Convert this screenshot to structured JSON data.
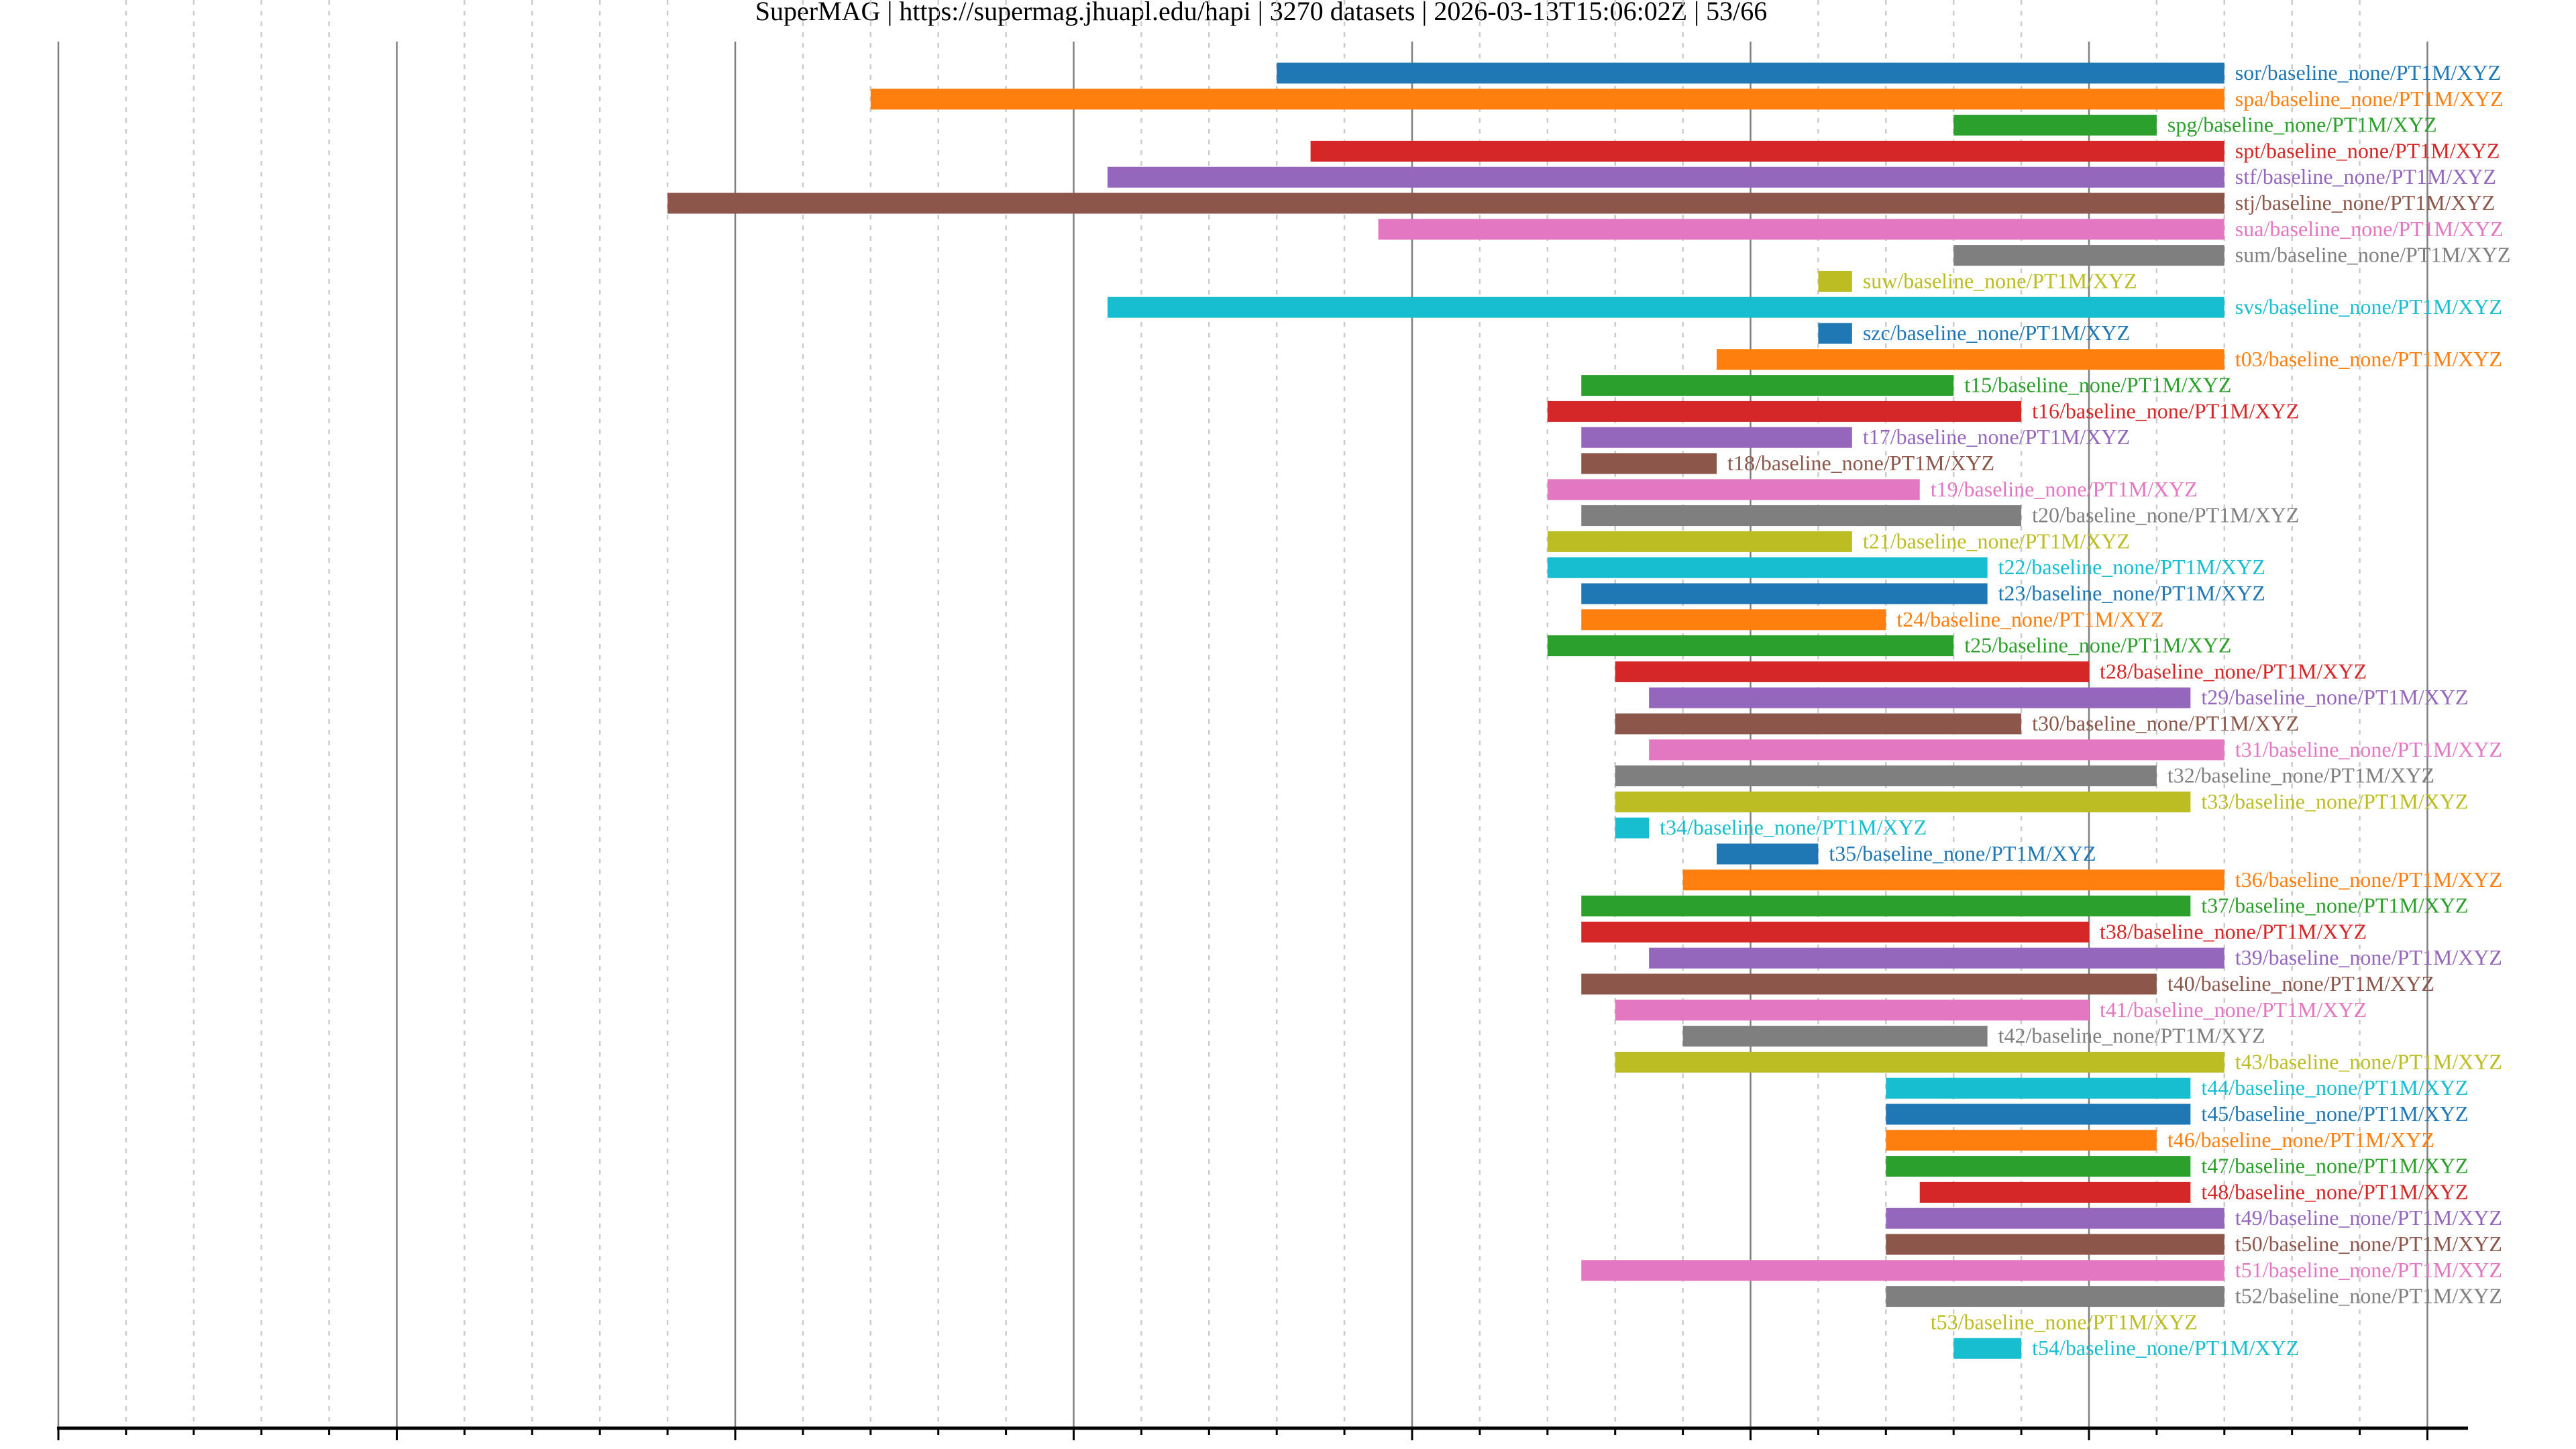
{
  "chart_data": {
    "type": "bar",
    "orientation": "horizontal-timeline",
    "title": "SuperMAG | https://supermag.jhuapl.edu/hapi | 3270 datasets | 2026-03-13T15:06:02Z | 53/66",
    "xlabel": "",
    "ylabel": "",
    "xlim": [
      1960,
      2031.2
    ],
    "x_major_ticks": [
      1960,
      1970,
      1980,
      1990,
      2000,
      2010,
      2020,
      2030
    ],
    "x_minor_step": 2,
    "grid": "major solid, minor dashed (vertical)",
    "colors": [
      "#1f77b4",
      "#ff7f0e",
      "#2ca02c",
      "#d62728",
      "#9467bd",
      "#8c564b",
      "#e377c2",
      "#7f7f7f",
      "#bcbd22",
      "#17becf"
    ],
    "series": [
      {
        "name": "sor/baseline_none/PT1M/XYZ",
        "start": 1996,
        "end": 2024
      },
      {
        "name": "spa/baseline_none/PT1M/XYZ",
        "start": 1984,
        "end": 2024
      },
      {
        "name": "spg/baseline_none/PT1M/XYZ",
        "start": 2016,
        "end": 2022
      },
      {
        "name": "spt/baseline_none/PT1M/XYZ",
        "start": 1997,
        "end": 2024
      },
      {
        "name": "stf/baseline_none/PT1M/XYZ",
        "start": 1991,
        "end": 2024
      },
      {
        "name": "stj/baseline_none/PT1M/XYZ",
        "start": 1978,
        "end": 2024
      },
      {
        "name": "sua/baseline_none/PT1M/XYZ",
        "start": 1999,
        "end": 2024
      },
      {
        "name": "sum/baseline_none/PT1M/XYZ",
        "start": 2016,
        "end": 2024
      },
      {
        "name": "suw/baseline_none/PT1M/XYZ",
        "start": 2012,
        "end": 2013
      },
      {
        "name": "svs/baseline_none/PT1M/XYZ",
        "start": 1991,
        "end": 2024
      },
      {
        "name": "szc/baseline_none/PT1M/XYZ",
        "start": 2012,
        "end": 2013
      },
      {
        "name": "t03/baseline_none/PT1M/XYZ",
        "start": 2009,
        "end": 2024
      },
      {
        "name": "t15/baseline_none/PT1M/XYZ",
        "start": 2005,
        "end": 2016
      },
      {
        "name": "t16/baseline_none/PT1M/XYZ",
        "start": 2004,
        "end": 2018
      },
      {
        "name": "t17/baseline_none/PT1M/XYZ",
        "start": 2005,
        "end": 2013
      },
      {
        "name": "t18/baseline_none/PT1M/XYZ",
        "start": 2005,
        "end": 2009
      },
      {
        "name": "t19/baseline_none/PT1M/XYZ",
        "start": 2004,
        "end": 2015
      },
      {
        "name": "t20/baseline_none/PT1M/XYZ",
        "start": 2005,
        "end": 2018
      },
      {
        "name": "t21/baseline_none/PT1M/XYZ",
        "start": 2004,
        "end": 2013
      },
      {
        "name": "t22/baseline_none/PT1M/XYZ",
        "start": 2004,
        "end": 2017
      },
      {
        "name": "t23/baseline_none/PT1M/XYZ",
        "start": 2005,
        "end": 2017
      },
      {
        "name": "t24/baseline_none/PT1M/XYZ",
        "start": 2005,
        "end": 2014
      },
      {
        "name": "t25/baseline_none/PT1M/XYZ",
        "start": 2004,
        "end": 2016
      },
      {
        "name": "t28/baseline_none/PT1M/XYZ",
        "start": 2006,
        "end": 2020
      },
      {
        "name": "t29/baseline_none/PT1M/XYZ",
        "start": 2007,
        "end": 2023
      },
      {
        "name": "t30/baseline_none/PT1M/XYZ",
        "start": 2006,
        "end": 2018
      },
      {
        "name": "t31/baseline_none/PT1M/XYZ",
        "start": 2007,
        "end": 2024
      },
      {
        "name": "t32/baseline_none/PT1M/XYZ",
        "start": 2006,
        "end": 2022
      },
      {
        "name": "t33/baseline_none/PT1M/XYZ",
        "start": 2006,
        "end": 2023
      },
      {
        "name": "t34/baseline_none/PT1M/XYZ",
        "start": 2006,
        "end": 2007
      },
      {
        "name": "t35/baseline_none/PT1M/XYZ",
        "start": 2009,
        "end": 2012
      },
      {
        "name": "t36/baseline_none/PT1M/XYZ",
        "start": 2008,
        "end": 2024
      },
      {
        "name": "t37/baseline_none/PT1M/XYZ",
        "start": 2005,
        "end": 2023
      },
      {
        "name": "t38/baseline_none/PT1M/XYZ",
        "start": 2005,
        "end": 2020
      },
      {
        "name": "t39/baseline_none/PT1M/XYZ",
        "start": 2007,
        "end": 2024
      },
      {
        "name": "t40/baseline_none/PT1M/XYZ",
        "start": 2005,
        "end": 2022
      },
      {
        "name": "t41/baseline_none/PT1M/XYZ",
        "start": 2006,
        "end": 2020
      },
      {
        "name": "t42/baseline_none/PT1M/XYZ",
        "start": 2008,
        "end": 2017
      },
      {
        "name": "t43/baseline_none/PT1M/XYZ",
        "start": 2006,
        "end": 2024
      },
      {
        "name": "t44/baseline_none/PT1M/XYZ",
        "start": 2014,
        "end": 2023
      },
      {
        "name": "t45/baseline_none/PT1M/XYZ",
        "start": 2014,
        "end": 2023
      },
      {
        "name": "t46/baseline_none/PT1M/XYZ",
        "start": 2014,
        "end": 2022
      },
      {
        "name": "t47/baseline_none/PT1M/XYZ",
        "start": 2014,
        "end": 2023
      },
      {
        "name": "t48/baseline_none/PT1M/XYZ",
        "start": 2015,
        "end": 2023
      },
      {
        "name": "t49/baseline_none/PT1M/XYZ",
        "start": 2014,
        "end": 2024
      },
      {
        "name": "t50/baseline_none/PT1M/XYZ",
        "start": 2014,
        "end": 2024
      },
      {
        "name": "t51/baseline_none/PT1M/XYZ",
        "start": 2005,
        "end": 2024
      },
      {
        "name": "t52/baseline_none/PT1M/XYZ",
        "start": 2014,
        "end": 2024
      },
      {
        "name": "t53/baseline_none/PT1M/XYZ",
        "start": 2015,
        "end": 2015
      },
      {
        "name": "t54/baseline_none/PT1M/XYZ",
        "start": 2016,
        "end": 2018
      }
    ]
  }
}
